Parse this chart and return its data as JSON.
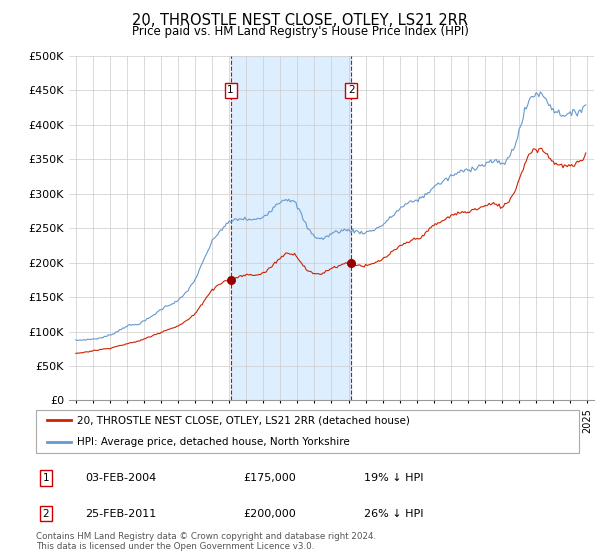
{
  "title": "20, THROSTLE NEST CLOSE, OTLEY, LS21 2RR",
  "subtitle": "Price paid vs. HM Land Registry's House Price Index (HPI)",
  "hpi_color": "#6699cc",
  "price_color": "#cc2200",
  "shaded_region_color": "#ddeeff",
  "grid_color": "#cccccc",
  "ylim": [
    0,
    500000
  ],
  "yticks": [
    0,
    50000,
    100000,
    150000,
    200000,
    250000,
    300000,
    350000,
    400000,
    450000,
    500000
  ],
  "transaction1": {
    "label": "1",
    "date": "03-FEB-2004",
    "price": 175000,
    "note": "19% ↓ HPI",
    "x": 2004.08
  },
  "transaction2": {
    "label": "2",
    "date": "25-FEB-2011",
    "price": 200000,
    "note": "26% ↓ HPI",
    "x": 2011.16
  },
  "legend_line1": "20, THROSTLE NEST CLOSE, OTLEY, LS21 2RR (detached house)",
  "legend_line2": "HPI: Average price, detached house, North Yorkshire",
  "footnote": "Contains HM Land Registry data © Crown copyright and database right 2024.\nThis data is licensed under the Open Government Licence v3.0."
}
